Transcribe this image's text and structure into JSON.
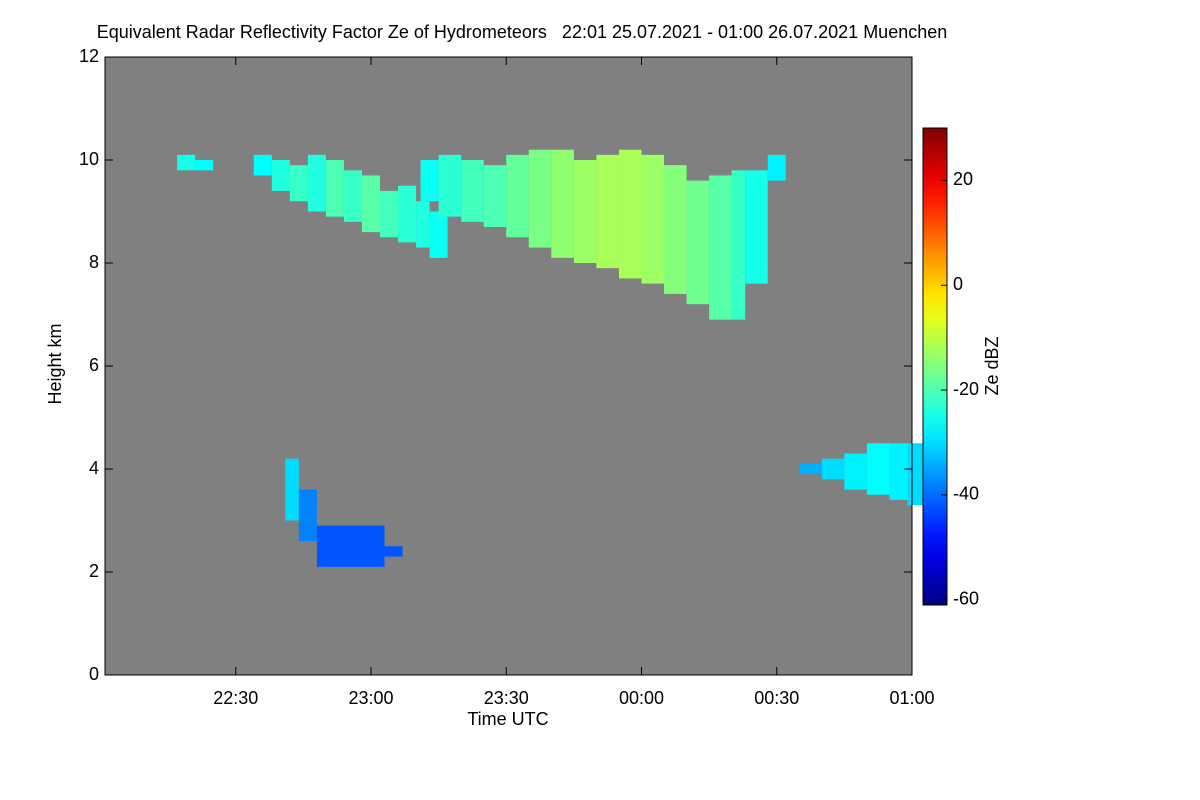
{
  "chart_data": {
    "type": "time-height",
    "title": "Equivalent Radar Reflectivity Factor Ze of Hydrometeors   22:01 25.07.2021 - 01:00 26.07.2021 Muenchen",
    "x_label": "Time UTC",
    "y_label": "Height km",
    "xlim": [
      "22:01",
      "01:00"
    ],
    "xticks": [
      "22:30",
      "23:00",
      "23:30",
      "00:00",
      "00:30",
      "01:00"
    ],
    "ylim": [
      0,
      12
    ],
    "yticks": [
      0,
      2,
      4,
      6,
      8,
      10,
      12
    ],
    "background": "#808080",
    "colorbar": {
      "label": "Ze dBZ",
      "lim": [
        -61,
        30
      ],
      "ticks": [
        -60,
        -40,
        -20,
        0,
        20
      ]
    },
    "echoes": [
      {
        "x": [
          "22:17",
          "22:21"
        ],
        "top": [
          10.1,
          10.0
        ],
        "base": [
          9.8,
          9.8
        ],
        "ze": [
          -25,
          -27
        ]
      },
      {
        "x": [
          "22:34",
          "22:38",
          "22:42",
          "22:46",
          "22:50",
          "22:54",
          "22:58",
          "23:02",
          "23:06",
          "23:10",
          "23:13"
        ],
        "top": [
          10.1,
          10.0,
          9.9,
          10.1,
          10.0,
          9.8,
          9.7,
          9.4,
          9.5,
          9.2,
          9.0
        ],
        "base": [
          9.7,
          9.4,
          9.2,
          9.0,
          8.9,
          8.8,
          8.6,
          8.5,
          8.4,
          8.3,
          8.1
        ],
        "ze": [
          -27,
          -24,
          -22,
          -24,
          -20,
          -22,
          -19,
          -21,
          -23,
          -24,
          -26
        ]
      },
      {
        "x": [
          "23:11",
          "23:15",
          "23:20",
          "23:25",
          "23:30",
          "23:35",
          "23:40",
          "23:45",
          "23:50",
          "23:55",
          "00:00",
          "00:05",
          "00:10",
          "00:15",
          "00:20",
          "00:23",
          "00:28"
        ],
        "top": [
          10.0,
          10.1,
          10.0,
          9.9,
          10.1,
          10.2,
          10.2,
          10.0,
          10.1,
          10.2,
          10.1,
          9.9,
          9.6,
          9.7,
          9.8,
          9.8,
          10.1
        ],
        "base": [
          9.2,
          8.9,
          8.8,
          8.7,
          8.5,
          8.3,
          8.1,
          8.0,
          7.9,
          7.7,
          7.6,
          7.4,
          7.2,
          6.9,
          6.9,
          7.6,
          9.6
        ],
        "ze": [
          -26,
          -23,
          -21,
          -20,
          -18,
          -16,
          -14,
          -13,
          -12,
          -12,
          -13,
          -15,
          -17,
          -19,
          -22,
          -25,
          -28
        ]
      },
      {
        "x": [
          "22:41",
          "22:44",
          "22:48",
          "23:03"
        ],
        "top": [
          4.2,
          3.6,
          2.9,
          2.5
        ],
        "base": [
          3.0,
          2.6,
          2.1,
          2.3
        ],
        "ze": [
          -30,
          -38,
          -42,
          -42
        ]
      },
      {
        "x": [
          "00:35",
          "00:40",
          "00:45",
          "00:50",
          "00:55",
          "00:59"
        ],
        "top": [
          4.1,
          4.2,
          4.3,
          4.5,
          4.5,
          4.5
        ],
        "base": [
          3.9,
          3.8,
          3.6,
          3.5,
          3.4,
          3.3
        ],
        "ze": [
          -34,
          -30,
          -28,
          -27,
          -28,
          -30
        ]
      }
    ]
  }
}
